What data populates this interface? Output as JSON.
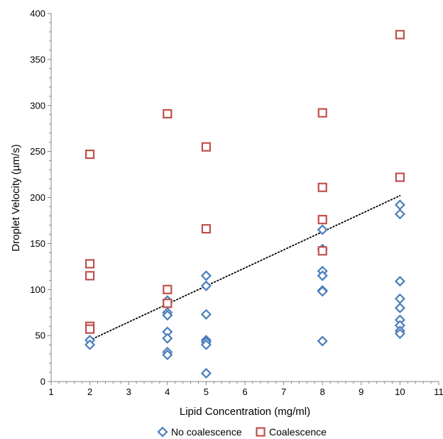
{
  "chart_data": {
    "type": "scatter",
    "title": "",
    "xlabel": "Lipid Concentration (mg/ml)",
    "ylabel": "Droplet Velocity (µm/s)",
    "xlim": [
      1,
      11
    ],
    "ylim": [
      0,
      400
    ],
    "x_ticks": [
      "1",
      "2",
      "3",
      "4",
      "5",
      "6",
      "7",
      "8",
      "9",
      "10",
      "11"
    ],
    "y_ticks": [
      "0",
      "50",
      "100",
      "150",
      "200",
      "250",
      "300",
      "350",
      "400"
    ],
    "grid": false,
    "legend_position": "bottom",
    "series": [
      {
        "name": "No coalescence",
        "marker": "diamond",
        "color": "#4a7ebb",
        "points": [
          [
            2,
            45
          ],
          [
            2,
            40
          ],
          [
            4,
            88
          ],
          [
            4,
            75
          ],
          [
            4,
            72
          ],
          [
            4,
            54
          ],
          [
            4,
            47
          ],
          [
            4,
            32
          ],
          [
            4,
            29
          ],
          [
            5,
            115
          ],
          [
            5,
            104
          ],
          [
            5,
            73
          ],
          [
            5,
            45
          ],
          [
            5,
            43
          ],
          [
            5,
            40
          ],
          [
            5,
            9
          ],
          [
            8,
            165
          ],
          [
            8,
            144
          ],
          [
            8,
            120
          ],
          [
            8,
            115
          ],
          [
            8,
            99
          ],
          [
            8,
            98
          ],
          [
            8,
            44
          ],
          [
            10,
            192
          ],
          [
            10,
            182
          ],
          [
            10,
            109
          ],
          [
            10,
            90
          ],
          [
            10,
            80
          ],
          [
            10,
            67
          ],
          [
            10,
            61
          ],
          [
            10,
            55
          ],
          [
            10,
            52
          ]
        ]
      },
      {
        "name": "Coalescence",
        "marker": "square",
        "color": "#c0504d",
        "points": [
          [
            2,
            247
          ],
          [
            2,
            128
          ],
          [
            2,
            115
          ],
          [
            2,
            60
          ],
          [
            2,
            57
          ],
          [
            4,
            291
          ],
          [
            4,
            100
          ],
          [
            4,
            85
          ],
          [
            5,
            255
          ],
          [
            5,
            166
          ],
          [
            8,
            292
          ],
          [
            8,
            211
          ],
          [
            8,
            176
          ],
          [
            8,
            142
          ],
          [
            10,
            377
          ],
          [
            10,
            222
          ]
        ]
      }
    ],
    "trendline": {
      "style": "dotted",
      "color": "#000000",
      "x": [
        2,
        10
      ],
      "y": [
        45,
        202
      ]
    }
  }
}
